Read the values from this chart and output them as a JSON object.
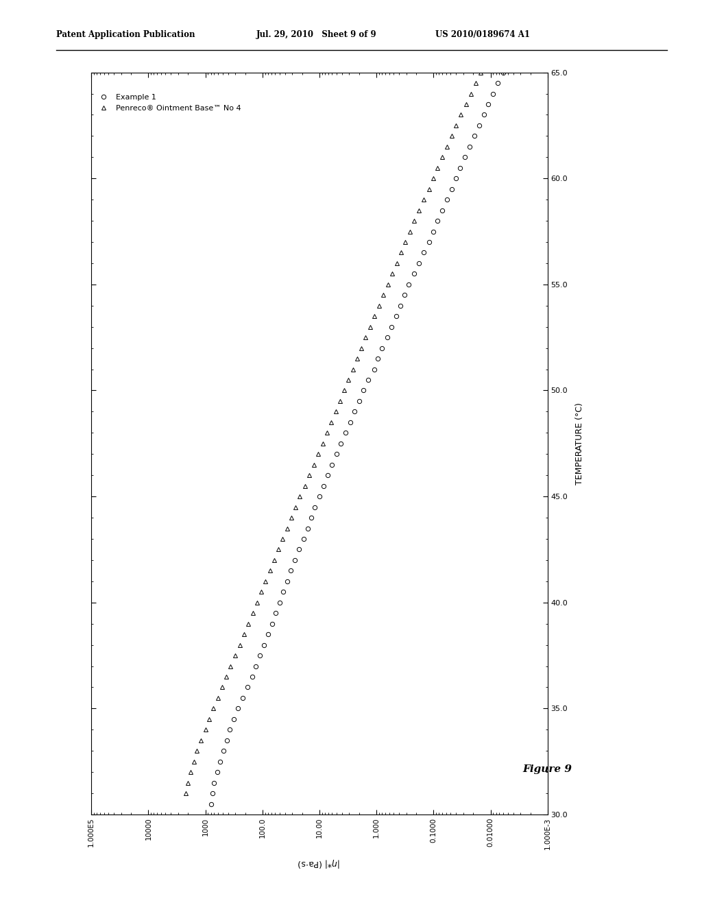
{
  "title": "Figure 9",
  "xlabel": "TEMPERATURE (°C)",
  "ylabel": "|\\u03b7*| (Pa·s)",
  "x_min": 30.0,
  "x_max": 65.0,
  "x_ticks": [
    30.0,
    35.0,
    40.0,
    45.0,
    50.0,
    55.0,
    60.0,
    65.0
  ],
  "y_min": 0.001,
  "y_max": 100000.0,
  "y_ticks_labels": [
    "1.000E-3",
    "0.01000",
    "0.1000",
    "1.000",
    "10.00",
    "100.0",
    "1000",
    "10000",
    "1.000E5"
  ],
  "y_ticks_values": [
    0.001,
    0.01,
    0.1,
    1.0,
    10.0,
    100.0,
    1000.0,
    10000.0,
    100000.0
  ],
  "legend_series1": "Example 1",
  "legend_series2": "Penreco® Ointment Base™ No 4",
  "header_left": "Patent Application Publication",
  "header_mid": "Jul. 29, 2010   Sheet 9 of 9",
  "header_right": "US 2010/0189674 A1",
  "background_color": "#ffffff",
  "series1_marker": "o",
  "series2_marker": "^",
  "series1_color": "#000000",
  "series2_color": "#000000",
  "series1_temp": [
    30.5,
    31.0,
    31.5,
    32.0,
    32.5,
    33.0,
    33.5,
    34.0,
    34.5,
    35.0,
    35.5,
    36.0,
    36.5,
    37.0,
    37.5,
    38.0,
    38.5,
    39.0,
    39.5,
    40.0,
    40.5,
    41.0,
    41.5,
    42.0,
    42.5,
    43.0,
    43.5,
    44.0,
    44.5,
    45.0,
    45.5,
    46.0,
    46.5,
    47.0,
    47.5,
    48.0,
    48.5,
    49.0,
    49.5,
    50.0,
    50.5,
    51.0,
    51.5,
    52.0,
    52.5,
    53.0,
    53.5,
    54.0,
    54.5,
    55.0,
    55.5,
    56.0,
    56.5,
    57.0,
    57.5,
    58.0,
    58.5,
    59.0,
    59.5,
    60.0,
    60.5,
    61.0,
    61.5,
    62.0,
    62.5,
    63.0,
    63.5,
    64.0,
    64.5,
    65.0
  ],
  "series1_visc": [
    800,
    750,
    700,
    620,
    550,
    480,
    420,
    370,
    320,
    270,
    220,
    180,
    150,
    130,
    110,
    95,
    80,
    68,
    58,
    50,
    43,
    37,
    32,
    27,
    23,
    19,
    16,
    14,
    12,
    10,
    8.5,
    7.2,
    6.0,
    5.0,
    4.2,
    3.5,
    2.9,
    2.4,
    2.0,
    1.7,
    1.4,
    1.1,
    0.95,
    0.8,
    0.65,
    0.55,
    0.45,
    0.38,
    0.32,
    0.27,
    0.22,
    0.18,
    0.15,
    0.12,
    0.1,
    0.085,
    0.07,
    0.058,
    0.048,
    0.04,
    0.034,
    0.028,
    0.023,
    0.019,
    0.016,
    0.013,
    0.011,
    0.009,
    0.0075,
    0.006
  ],
  "series2_temp": [
    31.0,
    31.5,
    32.0,
    32.5,
    33.0,
    33.5,
    34.0,
    34.5,
    35.0,
    35.5,
    36.0,
    36.5,
    37.0,
    37.5,
    38.0,
    38.5,
    39.0,
    39.5,
    40.0,
    40.5,
    41.0,
    41.5,
    42.0,
    42.5,
    43.0,
    43.5,
    44.0,
    44.5,
    45.0,
    45.5,
    46.0,
    46.5,
    47.0,
    47.5,
    48.0,
    48.5,
    49.0,
    49.5,
    50.0,
    50.5,
    51.0,
    51.5,
    52.0,
    52.5,
    53.0,
    53.5,
    54.0,
    54.5,
    55.0,
    55.5,
    56.0,
    56.5,
    57.0,
    57.5,
    58.0,
    58.5,
    59.0,
    59.5,
    60.0,
    60.5,
    61.0,
    61.5,
    62.0,
    62.5,
    63.0,
    63.5,
    64.0,
    64.5,
    65.0
  ],
  "series2_visc": [
    2200,
    2000,
    1800,
    1600,
    1400,
    1200,
    1000,
    850,
    720,
    600,
    510,
    430,
    360,
    300,
    250,
    210,
    175,
    148,
    125,
    105,
    88,
    74,
    62,
    52,
    44,
    37,
    31,
    26,
    22,
    18,
    15,
    12.5,
    10.5,
    8.8,
    7.4,
    6.2,
    5.2,
    4.4,
    3.7,
    3.1,
    2.6,
    2.2,
    1.85,
    1.55,
    1.3,
    1.08,
    0.9,
    0.76,
    0.63,
    0.53,
    0.44,
    0.37,
    0.31,
    0.26,
    0.22,
    0.18,
    0.15,
    0.12,
    0.1,
    0.085,
    0.07,
    0.058,
    0.048,
    0.04,
    0.033,
    0.027,
    0.022,
    0.018,
    0.015
  ]
}
